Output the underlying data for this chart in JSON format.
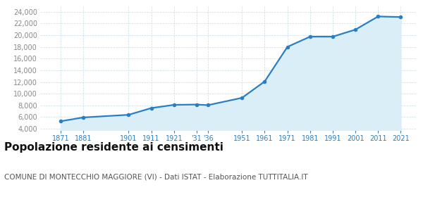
{
  "years": [
    1871,
    1881,
    1901,
    1911,
    1921,
    1931,
    1936,
    1951,
    1961,
    1971,
    1981,
    1991,
    2001,
    2011,
    2021
  ],
  "population": [
    5300,
    5950,
    6400,
    7550,
    8100,
    8150,
    8050,
    9300,
    12100,
    18000,
    19750,
    19750,
    20950,
    23200,
    23100
  ],
  "line_color": "#2a7fc4",
  "fill_color": "#daeef8",
  "marker_color": "#2a7fc4",
  "background_color": "#ffffff",
  "plot_bg_color": "#ffffff",
  "grid_color": "#c8dce8",
  "title": "Popolazione residente ai censimenti",
  "subtitle": "COMUNE DI MONTECCHIO MAGGIORE (VI) - Dati ISTAT - Elaborazione TUTTITALIA.IT",
  "ylim_min": 3800,
  "ylim_max": 25000,
  "title_fontsize": 11,
  "subtitle_fontsize": 7.5,
  "ytick_color": "#888888",
  "xtick_color": "#2a7fc4",
  "tick_fontsize": 7.0,
  "xlim_min": 1862,
  "xlim_max": 2028
}
